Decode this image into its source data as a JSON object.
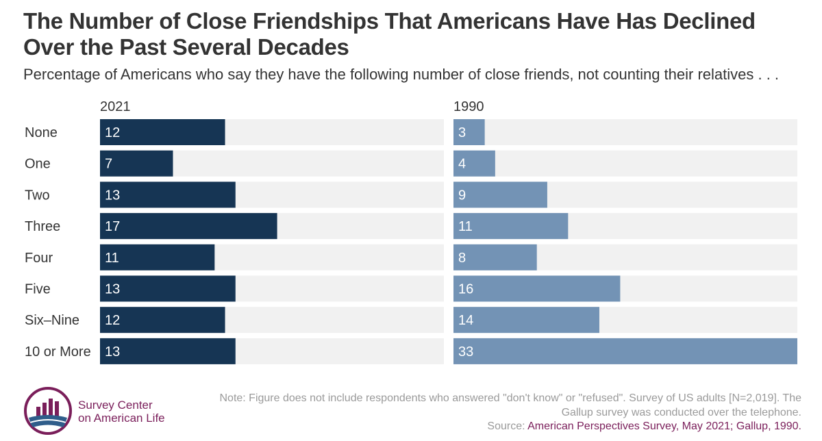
{
  "title": "The Number of Close Friendships That Americans Have Has Declined Over the Past Several Decades",
  "subtitle": "Percentage of Americans who say they have the following number of close friends, not counting their relatives . . .",
  "colors": {
    "series_2021": "#163554",
    "series_1990": "#7393b5",
    "track": "#f1f1f1",
    "label_on_bar": "#ffffff",
    "accent": "#7a1e5a"
  },
  "chart_data": {
    "type": "bar",
    "orientation": "horizontal",
    "categories": [
      "None",
      "One",
      "Two",
      "Three",
      "Four",
      "Five",
      "Six–Nine",
      "10 or More"
    ],
    "series": [
      {
        "name": "2021",
        "values": [
          12,
          7,
          13,
          17,
          11,
          13,
          12,
          13
        ]
      },
      {
        "name": "1990",
        "values": [
          3,
          4,
          9,
          11,
          8,
          16,
          14,
          33
        ]
      }
    ],
    "xlim": [
      0,
      33
    ],
    "grid": false,
    "data_labels": true
  },
  "footer": {
    "note": "Note: Figure does not include respondents who answered \"don't know\" or \"refused\". Survey of US adults [N=2,019]. The Gallup survey was conducted over the telephone.",
    "source_prefix": "Source: ",
    "source_text": "American Perspectives Survey, May 2021; Gallup, 1990."
  },
  "logo": {
    "line1": "Survey Center",
    "line2": "on American Life"
  }
}
